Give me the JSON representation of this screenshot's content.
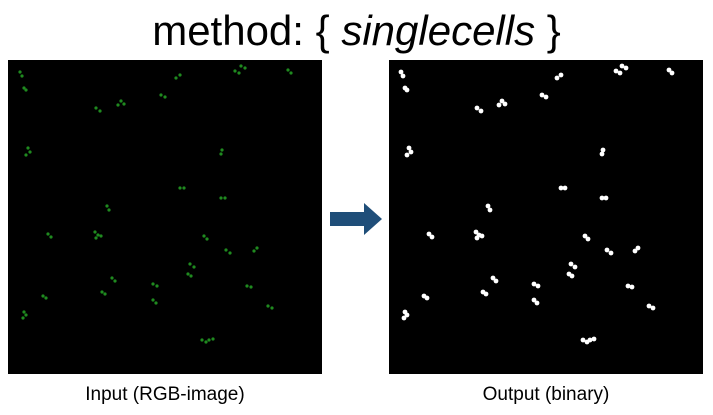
{
  "title": {
    "prefix": "method: { ",
    "method": "singlecells",
    "suffix": " }"
  },
  "input_panel": {
    "caption": "Input (RGB-image)",
    "background_color": "#000000",
    "cell_color": "#1f8a1f"
  },
  "output_panel": {
    "caption": "Output (binary)",
    "background_color": "#000000",
    "cell_color": "#ffffff"
  },
  "arrow": {
    "icon": "right-arrow-icon",
    "color": "#1f4e79"
  }
}
